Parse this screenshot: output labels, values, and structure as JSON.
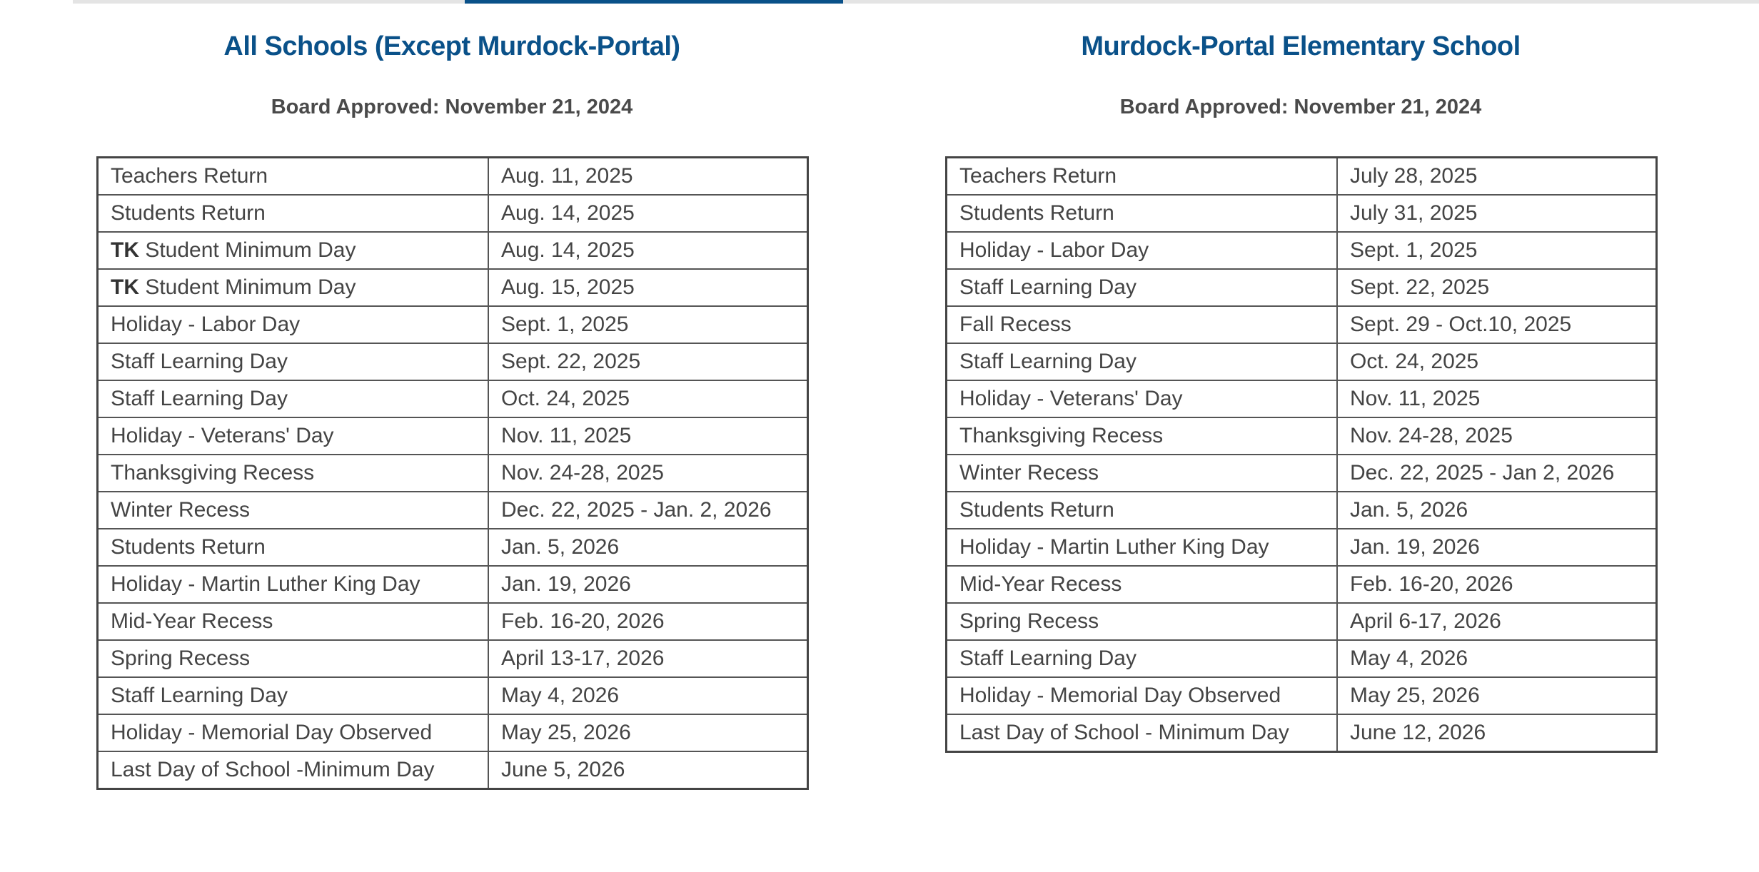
{
  "left": {
    "title": "All Schools (Except Murdock-Portal)",
    "subtitle": "Board Approved: November 21, 2024",
    "rows": [
      {
        "prefix": "",
        "event": "Teachers Return",
        "date": "Aug. 11, 2025"
      },
      {
        "prefix": "",
        "event": "Students Return",
        "date": "Aug. 14, 2025"
      },
      {
        "prefix": "TK",
        "event": " Student Minimum Day",
        "date": "Aug. 14, 2025"
      },
      {
        "prefix": "TK",
        "event": " Student Minimum Day",
        "date": "Aug. 15, 2025"
      },
      {
        "prefix": "",
        "event": "Holiday - Labor Day",
        "date": "Sept. 1, 2025"
      },
      {
        "prefix": "",
        "event": "Staff Learning Day",
        "date": "Sept. 22, 2025"
      },
      {
        "prefix": "",
        "event": "Staff Learning Day",
        "date": "Oct. 24, 2025"
      },
      {
        "prefix": "",
        "event": "Holiday - Veterans' Day",
        "date": "Nov. 11, 2025"
      },
      {
        "prefix": "",
        "event": "Thanksgiving Recess",
        "date": "Nov. 24-28, 2025"
      },
      {
        "prefix": "",
        "event": "Winter Recess",
        "date": "Dec. 22, 2025 - Jan. 2, 2026"
      },
      {
        "prefix": "",
        "event": "Students Return",
        "date": "Jan. 5, 2026"
      },
      {
        "prefix": "",
        "event": "Holiday - Martin Luther King Day",
        "date": "Jan. 19, 2026"
      },
      {
        "prefix": "",
        "event": "Mid-Year Recess",
        "date": "Feb. 16-20, 2026"
      },
      {
        "prefix": "",
        "event": "Spring Recess",
        "date": "April 13-17, 2026"
      },
      {
        "prefix": "",
        "event": "Staff Learning Day",
        "date": "May 4, 2026"
      },
      {
        "prefix": "",
        "event": "Holiday - Memorial Day Observed",
        "date": "May 25, 2026"
      },
      {
        "prefix": "",
        "event": "Last Day of School -Minimum Day",
        "date": "June 5, 2026"
      }
    ]
  },
  "right": {
    "title": "Murdock-Portal Elementary School",
    "subtitle": "Board Approved: November 21, 2024",
    "rows": [
      {
        "event": "Teachers Return",
        "date": "July 28, 2025"
      },
      {
        "event": "Students Return",
        "date": "July 31, 2025"
      },
      {
        "event": "Holiday - Labor Day",
        "date": "Sept. 1, 2025"
      },
      {
        "event": "Staff Learning Day",
        "date": "Sept. 22, 2025"
      },
      {
        "event": "Fall Recess",
        "date": "Sept. 29 - Oct.10, 2025"
      },
      {
        "event": "Staff Learning Day",
        "date": "Oct. 24, 2025"
      },
      {
        "event": "Holiday - Veterans' Day",
        "date": "Nov. 11, 2025"
      },
      {
        "event": "Thanksgiving Recess",
        "date": "Nov. 24-28, 2025"
      },
      {
        "event": "Winter Recess",
        "date": "Dec. 22, 2025 - Jan 2, 2026"
      },
      {
        "event": "Students Return",
        "date": "Jan. 5, 2026"
      },
      {
        "event": "Holiday - Martin Luther King Day",
        "date": "Jan. 19, 2026"
      },
      {
        "event": "Mid-Year Recess",
        "date": "Feb. 16-20, 2026"
      },
      {
        "event": "Spring Recess",
        "date": "April 6-17, 2026"
      },
      {
        "event": "Staff Learning Day",
        "date": "May 4, 2026"
      },
      {
        "event": "Holiday - Memorial Day Observed",
        "date": "May 25, 2026"
      },
      {
        "event": "Last Day of School - Minimum Day",
        "date": "June 12, 2026"
      }
    ]
  },
  "colors": {
    "title": "#0a5189",
    "tab_active": "#0a5189",
    "text": "#444444"
  }
}
